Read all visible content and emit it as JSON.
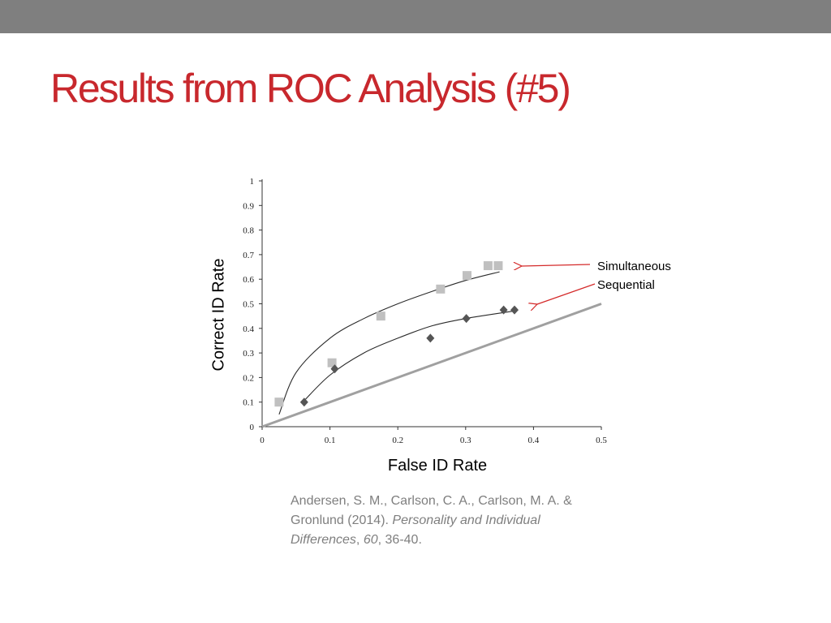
{
  "slide": {
    "title": "Results from ROC Analysis (#5)"
  },
  "citation": {
    "authors": "Andersen, S. M., Carlson, C. A., Carlson, M. A. &",
    "line2_prefix": "Gronlund (2014).",
    "journal": "Personality and Individual",
    "line3_journal": "Differences",
    "comma": ",",
    "volume": "60",
    "pages": ", 36-40."
  },
  "chart_data": {
    "type": "scatter",
    "xlabel": "False ID Rate",
    "ylabel": "Correct ID Rate",
    "xlim": [
      0,
      0.5
    ],
    "ylim": [
      0,
      1
    ],
    "xticks": [
      "0",
      "0.1",
      "0.2",
      "0.3",
      "0.4",
      "0.5"
    ],
    "yticks": [
      "0",
      "0.1",
      "0.2",
      "0.3",
      "0.4",
      "0.5",
      "0.6",
      "0.7",
      "0.8",
      "0.9",
      "1"
    ],
    "grid": false,
    "series": [
      {
        "name": "Simultaneous",
        "marker": "square",
        "color": "#c0c0c0",
        "points": [
          [
            0.025,
            0.1
          ],
          [
            0.103,
            0.26
          ],
          [
            0.175,
            0.45
          ],
          [
            0.263,
            0.56
          ],
          [
            0.302,
            0.615
          ],
          [
            0.333,
            0.655
          ],
          [
            0.348,
            0.655
          ]
        ],
        "fit_curve": [
          [
            0.025,
            0.05
          ],
          [
            0.05,
            0.22
          ],
          [
            0.1,
            0.36
          ],
          [
            0.15,
            0.44
          ],
          [
            0.2,
            0.5
          ],
          [
            0.25,
            0.55
          ],
          [
            0.3,
            0.595
          ],
          [
            0.35,
            0.63
          ]
        ]
      },
      {
        "name": "Sequential",
        "marker": "diamond",
        "color": "#555555",
        "points": [
          [
            0.062,
            0.1
          ],
          [
            0.107,
            0.235
          ],
          [
            0.248,
            0.36
          ],
          [
            0.301,
            0.44
          ],
          [
            0.356,
            0.475
          ],
          [
            0.372,
            0.475
          ]
        ],
        "fit_curve": [
          [
            0.06,
            0.1
          ],
          [
            0.1,
            0.21
          ],
          [
            0.15,
            0.3
          ],
          [
            0.2,
            0.36
          ],
          [
            0.25,
            0.41
          ],
          [
            0.3,
            0.44
          ],
          [
            0.37,
            0.47
          ]
        ]
      }
    ],
    "reference_line": {
      "from": [
        0,
        0
      ],
      "to": [
        0.5,
        0.5
      ],
      "color": "#a0a0a0"
    },
    "annotation_color": "#d42a2a"
  }
}
